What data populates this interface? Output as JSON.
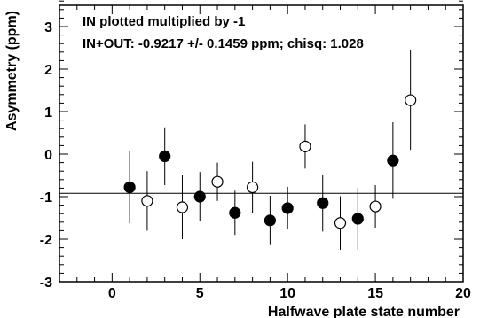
{
  "chart_data": {
    "type": "scatter",
    "title": "",
    "xlabel": "Halfwave plate state number",
    "ylabel": "Asymmetry (ppm)",
    "xlim": [
      -3,
      20
    ],
    "ylim": [
      -3,
      3.5
    ],
    "x_ticks": [
      0,
      5,
      10,
      15,
      20
    ],
    "y_ticks": [
      -3,
      -2,
      -1,
      0,
      1,
      2,
      3
    ],
    "annotations": [
      "IN plotted multiplied by -1",
      "IN+OUT: -0.9217 +/- 0.1459 ppm; chisq: 1.028"
    ],
    "fit_line": {
      "y": -0.9217
    },
    "grid": false,
    "legend": "none",
    "series": [
      {
        "marker": "filled",
        "x": [
          1,
          3,
          5,
          7,
          9,
          10,
          12,
          14,
          16
        ],
        "y": [
          -0.78,
          -0.05,
          -1.0,
          -1.38,
          -1.56,
          -1.27,
          -1.15,
          -1.52,
          -0.15
        ],
        "err": [
          0.85,
          0.68,
          0.58,
          0.52,
          0.58,
          0.5,
          0.67,
          0.73,
          0.9
        ]
      },
      {
        "marker": "open",
        "x": [
          2,
          4,
          6,
          8,
          11,
          13,
          15,
          17
        ],
        "y": [
          -1.1,
          -1.25,
          -0.65,
          -0.78,
          0.18,
          -1.62,
          -1.23,
          1.27
        ],
        "err": [
          0.7,
          0.75,
          0.45,
          0.6,
          0.52,
          0.63,
          0.5,
          1.17
        ]
      }
    ]
  }
}
